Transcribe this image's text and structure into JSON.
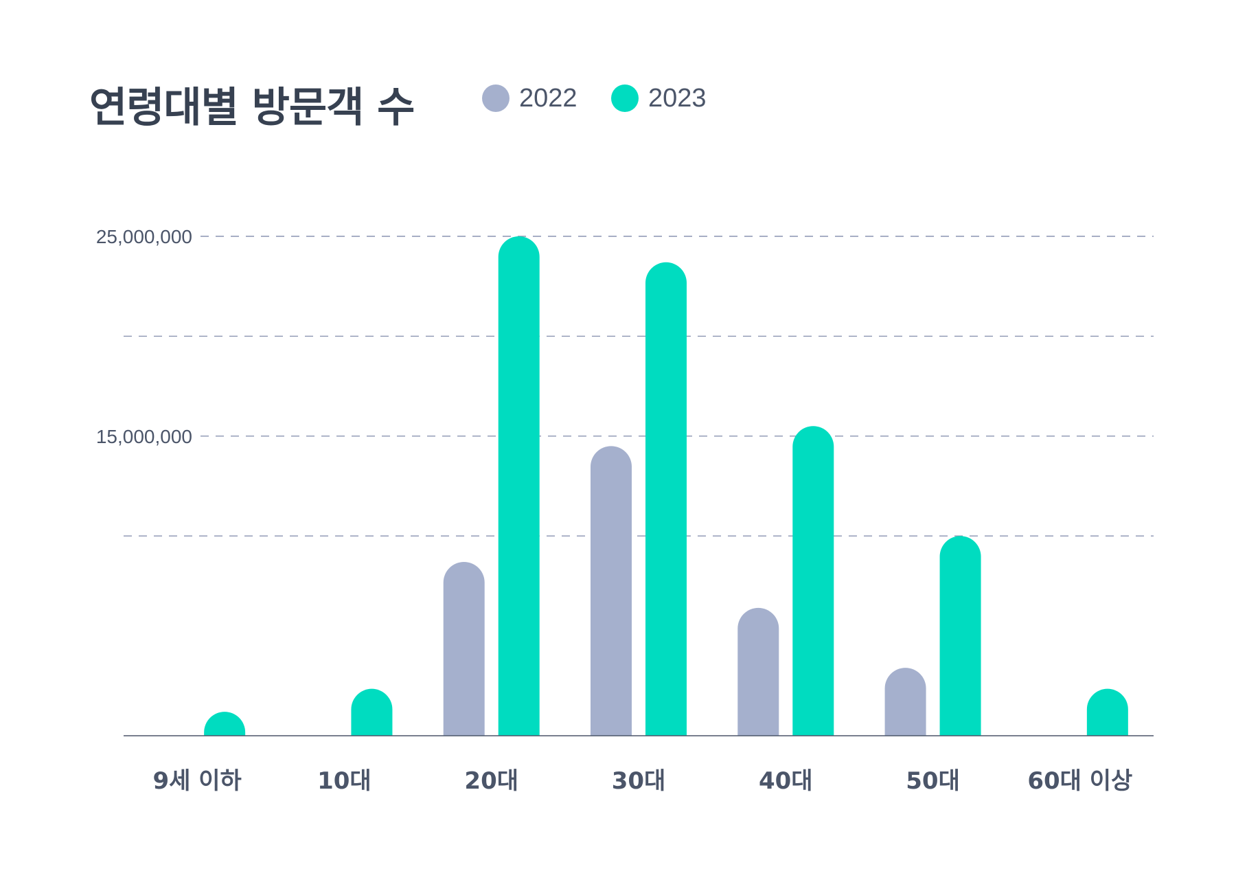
{
  "chart_data": {
    "type": "bar",
    "title": "연령대별 방문객 수",
    "categories": [
      "9세 이하",
      "10대",
      "20대",
      "30대",
      "40대",
      "50대",
      "60대 이상"
    ],
    "series": [
      {
        "name": "2022",
        "color": "#a5b0cd",
        "values": [
          0,
          0,
          8700000,
          14500000,
          6400000,
          3400000,
          0
        ]
      },
      {
        "name": "2023",
        "color": "#00dcc0",
        "values": [
          1200000,
          2350000,
          25000000,
          23700000,
          15500000,
          10000000,
          2350000
        ]
      }
    ],
    "ylim": [
      0,
      25000000
    ],
    "yticks": [
      15000000,
      25000000
    ],
    "ytick_labels": [
      "15,000,000",
      "25,000,000"
    ],
    "gridlines": [
      10000000,
      15000000,
      20000000,
      25000000
    ],
    "grid": "dashed horizontal",
    "legend": "top, next to title",
    "xlabel": "",
    "ylabel": ""
  }
}
